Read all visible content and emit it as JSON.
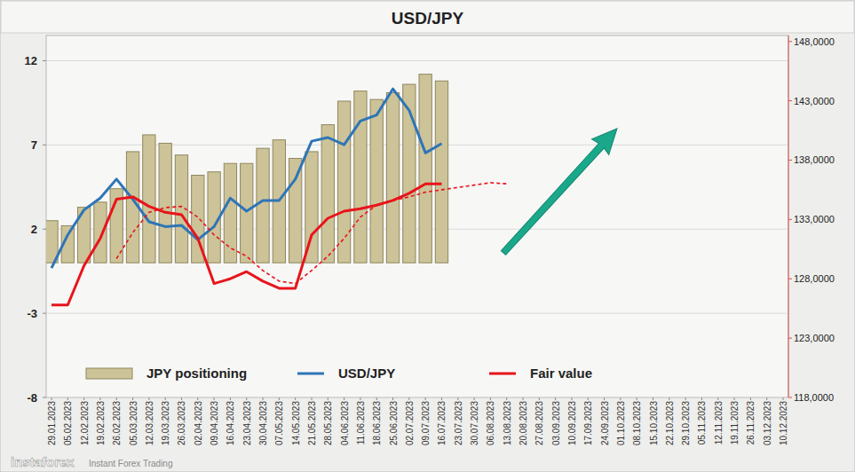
{
  "chart_data": {
    "type": "bar",
    "title": "USD/JPY",
    "categories": [
      "29.01.2023",
      "05.02.2023",
      "12.02.2023",
      "19.02.2023",
      "26.02.2023",
      "05.03.2023",
      "12.03.2023",
      "19.03.2023",
      "26.03.2023",
      "02.04.2023",
      "09.04.2023",
      "16.04.2023",
      "23.04.2023",
      "30.04.2023",
      "07.05.2023",
      "14.05.2023",
      "21.05.2023",
      "28.05.2023",
      "04.06.2023",
      "11.06.2023",
      "18.06.2023",
      "25.06.2023",
      "02.07.2023",
      "09.07.2023",
      "16.07.2023",
      "23.07.2023",
      "30.07.2023",
      "06.08.2023",
      "13.08.2023",
      "20.08.2023",
      "27.08.2023",
      "03.09.2023",
      "10.09.2023",
      "17.09.2023",
      "24.09.2023",
      "01.10.2023",
      "08.10.2023",
      "15.10.2023",
      "22.10.2023",
      "29.10.2023",
      "05.11.2023",
      "12.11.2023",
      "19.11.2023",
      "26.11.2023",
      "03.12.2023",
      "10.12.2023"
    ],
    "series": [
      {
        "name": "JPY positioning",
        "type": "bar",
        "color": "#cdc398",
        "values": [
          2.5,
          2.2,
          3.3,
          3.6,
          4.4,
          6.6,
          7.6,
          7.1,
          6.4,
          5.2,
          5.4,
          5.9,
          5.9,
          6.8,
          7.3,
          6.2,
          6.6,
          8.2,
          9.6,
          10.2,
          9.7,
          10.1,
          10.6,
          11.2,
          10.8,
          null,
          null,
          null,
          null,
          null,
          null,
          null,
          null,
          null,
          null,
          null,
          null,
          null,
          null,
          null,
          null,
          null,
          null,
          null,
          null,
          null
        ]
      },
      {
        "name": "USD/JPY",
        "type": "line",
        "axis": "y2",
        "color": "#2e75b6",
        "line_style": "solid",
        "values": [
          128.9,
          131.7,
          133.8,
          134.8,
          136.4,
          134.7,
          132.8,
          132.4,
          132.5,
          131.3,
          132.4,
          134.8,
          133.7,
          134.6,
          134.6,
          136.4,
          139.6,
          139.9,
          139.3,
          141.3,
          141.8,
          144.0,
          142.2,
          138.6,
          139.4,
          null,
          null,
          null,
          null,
          null,
          null,
          null,
          null,
          null,
          null,
          null,
          null,
          null,
          null,
          null,
          null,
          null,
          null,
          null,
          null,
          null
        ]
      },
      {
        "name": "Fair value",
        "type": "line",
        "axis": "y2",
        "color": "#e8141b",
        "line_style": "solid",
        "values": [
          125.8,
          125.8,
          129.1,
          131.4,
          134.7,
          134.9,
          134.1,
          133.6,
          133.4,
          131.4,
          127.6,
          128.0,
          128.6,
          127.8,
          127.2,
          127.2,
          131.7,
          133.1,
          133.7,
          133.9,
          134.2,
          134.6,
          135.2,
          136.0,
          136.0,
          null,
          null,
          null,
          null,
          null,
          null,
          null,
          null,
          null,
          null,
          null,
          null,
          null,
          null,
          null,
          null,
          null,
          null,
          null,
          null,
          null
        ]
      },
      {
        "type": "line",
        "axis": "y2",
        "color": "#e8141b",
        "line_style": "dashed",
        "values": [
          null,
          null,
          null,
          null,
          129.7,
          131.9,
          133.6,
          134.0,
          134.1,
          133.2,
          131.7,
          130.6,
          129.9,
          128.7,
          127.8,
          127.6,
          128.7,
          129.9,
          131.4,
          133.2,
          134.2,
          134.6,
          134.9,
          135.3,
          135.5,
          135.7,
          135.9,
          136.1,
          136.0,
          null,
          null,
          null,
          null,
          null,
          null,
          null,
          null,
          null,
          null,
          null,
          null,
          null,
          null,
          null,
          null,
          null
        ]
      }
    ],
    "ylim": [
      -8,
      13.5
    ],
    "yticks": [
      -8,
      -3,
      2,
      7,
      12
    ],
    "y2lim": [
      118,
      148.5
    ],
    "y2ticks": [
      {
        "value": 118,
        "label": "118,0000"
      },
      {
        "value": 123,
        "label": "123,0000"
      },
      {
        "value": 128,
        "label": "128,0000"
      },
      {
        "value": 133,
        "label": "133,0000"
      },
      {
        "value": 138,
        "label": "138,0000"
      },
      {
        "value": 143,
        "label": "143,0000"
      },
      {
        "value": 148,
        "label": "148,0000"
      }
    ],
    "grid": true,
    "legend": "bottom",
    "annotations": [
      "instaforex",
      "Instant Forex Trading"
    ]
  }
}
